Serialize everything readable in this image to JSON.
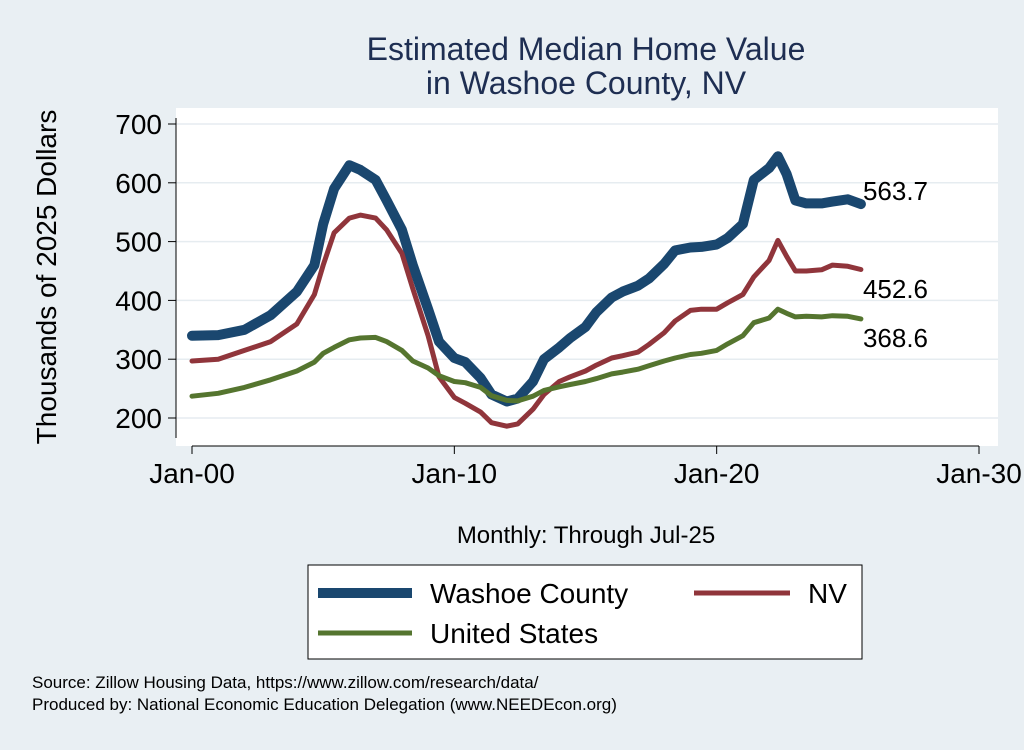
{
  "chart_data": {
    "type": "line",
    "title": [
      "Estimated Median Home Value",
      "in Washoe County, NV"
    ],
    "xlabel": "Monthly: Through Jul-25",
    "ylabel": "Thousands of 2025 Dollars",
    "x_range": [
      "2000-01",
      "2030-01"
    ],
    "ylim": [
      180,
      720
    ],
    "y_ticks": [
      200,
      300,
      400,
      500,
      600,
      700
    ],
    "x_ticks": [
      {
        "date": "2000-01",
        "label": "Jan-00"
      },
      {
        "date": "2010-01",
        "label": "Jan-10"
      },
      {
        "date": "2020-01",
        "label": "Jan-20"
      },
      {
        "date": "2030-01",
        "label": "Jan-30"
      }
    ],
    "grid": true,
    "legend_position": "bottom",
    "series": [
      {
        "name": "Washoe County",
        "color": "#1a476f",
        "end_label": "563.7",
        "points": [
          [
            "2000-01",
            340
          ],
          [
            "2001-01",
            341
          ],
          [
            "2002-01",
            350
          ],
          [
            "2003-01",
            375
          ],
          [
            "2004-01",
            415
          ],
          [
            "2004-09",
            460
          ],
          [
            "2005-01",
            530
          ],
          [
            "2005-06",
            590
          ],
          [
            "2006-01",
            630
          ],
          [
            "2006-06",
            622
          ],
          [
            "2007-01",
            605
          ],
          [
            "2007-06",
            570
          ],
          [
            "2008-01",
            520
          ],
          [
            "2008-06",
            460
          ],
          [
            "2009-01",
            385
          ],
          [
            "2009-06",
            330
          ],
          [
            "2010-01",
            302
          ],
          [
            "2010-06",
            295
          ],
          [
            "2011-01",
            268
          ],
          [
            "2011-06",
            240
          ],
          [
            "2012-01",
            228
          ],
          [
            "2012-06",
            233
          ],
          [
            "2013-01",
            262
          ],
          [
            "2013-06",
            300
          ],
          [
            "2014-01",
            320
          ],
          [
            "2014-06",
            336
          ],
          [
            "2015-01",
            355
          ],
          [
            "2015-06",
            380
          ],
          [
            "2016-01",
            405
          ],
          [
            "2016-06",
            415
          ],
          [
            "2017-01",
            425
          ],
          [
            "2017-06",
            437
          ],
          [
            "2018-01",
            462
          ],
          [
            "2018-06",
            485
          ],
          [
            "2019-01",
            490
          ],
          [
            "2019-06",
            491
          ],
          [
            "2020-01",
            495
          ],
          [
            "2020-06",
            506
          ],
          [
            "2021-01",
            530
          ],
          [
            "2021-06",
            605
          ],
          [
            "2022-01",
            625
          ],
          [
            "2022-05",
            645
          ],
          [
            "2022-09",
            615
          ],
          [
            "2023-01",
            570
          ],
          [
            "2023-06",
            565
          ],
          [
            "2024-01",
            565
          ],
          [
            "2024-06",
            568
          ],
          [
            "2025-01",
            572
          ],
          [
            "2025-07",
            563.7
          ]
        ]
      },
      {
        "name": "NV",
        "color": "#90353b",
        "end_label": "452.6",
        "points": [
          [
            "2000-01",
            297
          ],
          [
            "2001-01",
            300
          ],
          [
            "2002-01",
            315
          ],
          [
            "2003-01",
            330
          ],
          [
            "2004-01",
            360
          ],
          [
            "2004-09",
            410
          ],
          [
            "2005-01",
            460
          ],
          [
            "2005-06",
            515
          ],
          [
            "2006-01",
            540
          ],
          [
            "2006-06",
            545
          ],
          [
            "2007-01",
            540
          ],
          [
            "2007-06",
            520
          ],
          [
            "2008-01",
            480
          ],
          [
            "2008-06",
            420
          ],
          [
            "2009-01",
            340
          ],
          [
            "2009-06",
            270
          ],
          [
            "2010-01",
            235
          ],
          [
            "2010-06",
            225
          ],
          [
            "2011-01",
            210
          ],
          [
            "2011-06",
            192
          ],
          [
            "2012-01",
            186
          ],
          [
            "2012-06",
            190
          ],
          [
            "2013-01",
            215
          ],
          [
            "2013-06",
            240
          ],
          [
            "2014-01",
            262
          ],
          [
            "2014-06",
            270
          ],
          [
            "2015-01",
            280
          ],
          [
            "2015-06",
            290
          ],
          [
            "2016-01",
            302
          ],
          [
            "2016-06",
            306
          ],
          [
            "2017-01",
            312
          ],
          [
            "2017-06",
            325
          ],
          [
            "2018-01",
            345
          ],
          [
            "2018-06",
            365
          ],
          [
            "2019-01",
            383
          ],
          [
            "2019-06",
            385
          ],
          [
            "2020-01",
            385
          ],
          [
            "2020-06",
            396
          ],
          [
            "2021-01",
            410
          ],
          [
            "2021-06",
            440
          ],
          [
            "2022-01",
            468
          ],
          [
            "2022-05",
            502
          ],
          [
            "2022-09",
            475
          ],
          [
            "2023-01",
            450
          ],
          [
            "2023-06",
            450
          ],
          [
            "2024-01",
            452
          ],
          [
            "2024-06",
            460
          ],
          [
            "2025-01",
            458
          ],
          [
            "2025-07",
            452.6
          ]
        ]
      },
      {
        "name": "United States",
        "color": "#55752f",
        "end_label": "368.6",
        "points": [
          [
            "2000-01",
            237
          ],
          [
            "2001-01",
            242
          ],
          [
            "2002-01",
            252
          ],
          [
            "2003-01",
            265
          ],
          [
            "2004-01",
            280
          ],
          [
            "2004-09",
            295
          ],
          [
            "2005-01",
            310
          ],
          [
            "2005-06",
            320
          ],
          [
            "2006-01",
            333
          ],
          [
            "2006-06",
            336
          ],
          [
            "2007-01",
            337
          ],
          [
            "2007-06",
            330
          ],
          [
            "2008-01",
            315
          ],
          [
            "2008-06",
            297
          ],
          [
            "2009-01",
            285
          ],
          [
            "2009-06",
            272
          ],
          [
            "2010-01",
            262
          ],
          [
            "2010-06",
            260
          ],
          [
            "2011-01",
            252
          ],
          [
            "2011-06",
            238
          ],
          [
            "2012-01",
            230
          ],
          [
            "2012-06",
            229
          ],
          [
            "2013-01",
            237
          ],
          [
            "2013-06",
            247
          ],
          [
            "2014-01",
            253
          ],
          [
            "2014-06",
            257
          ],
          [
            "2015-01",
            262
          ],
          [
            "2015-06",
            267
          ],
          [
            "2016-01",
            275
          ],
          [
            "2016-06",
            278
          ],
          [
            "2017-01",
            283
          ],
          [
            "2017-06",
            289
          ],
          [
            "2018-01",
            297
          ],
          [
            "2018-06",
            302
          ],
          [
            "2019-01",
            308
          ],
          [
            "2019-06",
            310
          ],
          [
            "2020-01",
            315
          ],
          [
            "2020-06",
            326
          ],
          [
            "2021-01",
            340
          ],
          [
            "2021-06",
            362
          ],
          [
            "2022-01",
            370
          ],
          [
            "2022-05",
            385
          ],
          [
            "2022-09",
            378
          ],
          [
            "2023-01",
            372
          ],
          [
            "2023-06",
            373
          ],
          [
            "2024-01",
            372
          ],
          [
            "2024-06",
            374
          ],
          [
            "2025-01",
            373
          ],
          [
            "2025-07",
            368.6
          ]
        ]
      }
    ],
    "notes": [
      "Source: Zillow Housing Data, https://www.zillow.com/research/data/",
      "Produced by: National Economic Education Delegation (www.NEEDEcon.org)"
    ]
  }
}
